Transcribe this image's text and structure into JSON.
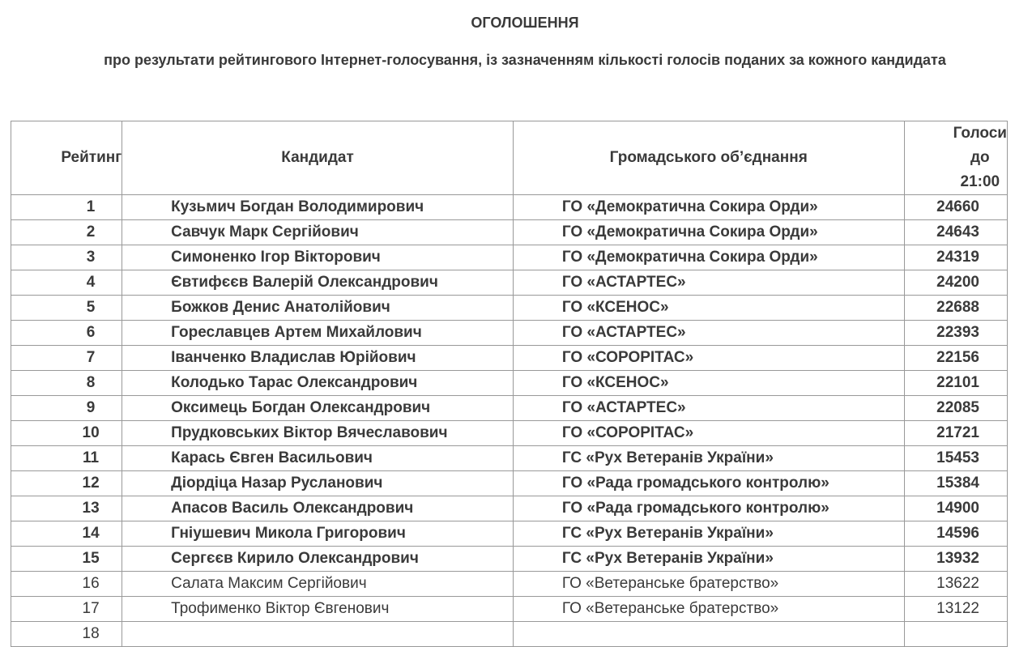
{
  "title": "ОГОЛОШЕННЯ",
  "subtitle": "про результати рейтингового Інтернет-голосування, із зазначенням кількості голосів поданих за кожного кандидата",
  "table": {
    "headers": [
      "Рейтинг",
      "Кандидат",
      "Громадського об’єднання",
      "Голоси до 21:00"
    ],
    "rows": [
      {
        "rank": "1",
        "name": "Кузьмич Богдан Володимирович",
        "org": "ГО «Демократична Сокира Орди»",
        "votes": "24660",
        "bold": true
      },
      {
        "rank": "2",
        "name": "Савчук Марк Сергійович",
        "org": "ГО «Демократична Сокира Орди»",
        "votes": "24643",
        "bold": true
      },
      {
        "rank": "3",
        "name": "Симоненко Ігор Вікторович",
        "org": "ГО «Демократична Сокира Орди»",
        "votes": "24319",
        "bold": true
      },
      {
        "rank": "4",
        "name": "Євтифєєв Валерій Олександрович",
        "org": "ГО «АСТАРТЕС»",
        "votes": "24200",
        "bold": true
      },
      {
        "rank": "5",
        "name": "Божков Денис Анатолійович",
        "org": "ГО «КСЕНОС»",
        "votes": "22688",
        "bold": true
      },
      {
        "rank": "6",
        "name": "Гореславцев Артем Михайлович",
        "org": "ГО «АСТАРТЕС»",
        "votes": "22393",
        "bold": true
      },
      {
        "rank": "7",
        "name": "Іванченко Владислав Юрійович",
        "org": "ГО «СОРОРІТАС»",
        "votes": "22156",
        "bold": true
      },
      {
        "rank": "8",
        "name": "Колодько Тарас Олександрович",
        "org": "ГО «КСЕНОС»",
        "votes": "22101",
        "bold": true
      },
      {
        "rank": "9",
        "name": "Оксимець Богдан Олександрович",
        "org": "ГО «АСТАРТЕС»",
        "votes": "22085",
        "bold": true
      },
      {
        "rank": "10",
        "name": "Прудковських Віктор Вячеславович",
        "org": "ГО «СОРОРІТАС»",
        "votes": "21721",
        "bold": true
      },
      {
        "rank": "11",
        "name": "Карась Євген Васильович",
        "org": "ГС «Рух Ветеранів України»",
        "votes": "15453",
        "bold": true
      },
      {
        "rank": "12",
        "name": "Діордіца Назар Русланович",
        "org": "ГО «Рада громадського контролю»",
        "votes": "15384",
        "bold": true
      },
      {
        "rank": "13",
        "name": "Апасов Василь Олександрович",
        "org": "ГО «Рада громадського контролю»",
        "votes": "14900",
        "bold": true
      },
      {
        "rank": "14",
        "name": "Гніушевич Микола Григорович",
        "org": "ГС «Рух Ветеранів України»",
        "votes": "14596",
        "bold": true
      },
      {
        "rank": "15",
        "name": "Сергєєв Кирило Олександрович",
        "org": "ГС «Рух Ветеранів України»",
        "votes": "13932",
        "bold": true
      },
      {
        "rank": "16",
        "name": "Салата Максим Сергійович",
        "org": "ГО «Ветеранське братерство»",
        "votes": "13622",
        "bold": false
      },
      {
        "rank": "17",
        "name": "Трофименко Віктор Євгенович",
        "org": "ГО «Ветеранське братерство»",
        "votes": "13122",
        "bold": false
      },
      {
        "rank": "18",
        "name": "",
        "org": "",
        "votes": "",
        "bold": false
      }
    ]
  }
}
